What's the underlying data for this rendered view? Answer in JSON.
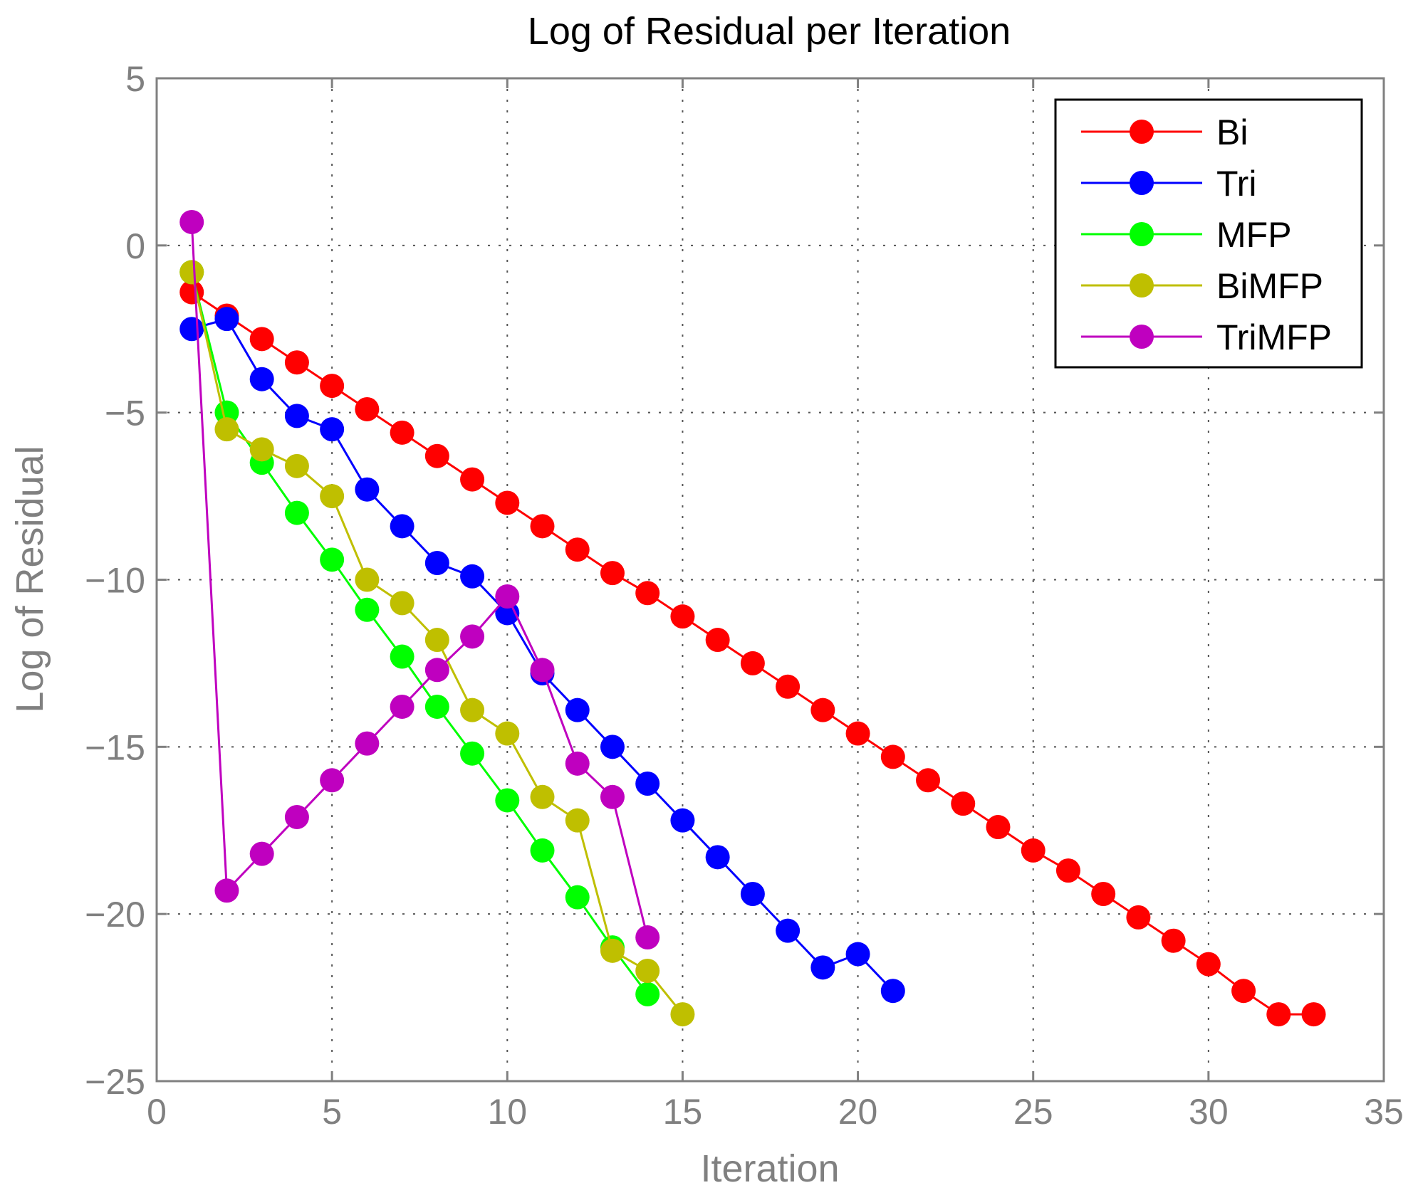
{
  "chart_data": {
    "type": "line",
    "title": "Log of Residual per Iteration",
    "xlabel": "Iteration",
    "ylabel": "Log of Residual",
    "xlim": [
      0,
      35
    ],
    "ylim": [
      -25,
      5
    ],
    "xticks": [
      0,
      5,
      10,
      15,
      20,
      25,
      30,
      35
    ],
    "yticks": [
      5,
      0,
      -5,
      -10,
      -15,
      -20,
      -25
    ],
    "xtick_labels": [
      "0",
      "5",
      "10",
      "15",
      "20",
      "25",
      "30",
      "35"
    ],
    "ytick_labels": [
      "5",
      "0",
      "−5",
      "−10",
      "−15",
      "−20",
      "−25"
    ],
    "grid": true,
    "legend_position": "top-right",
    "series": [
      {
        "name": "Bi",
        "color": "#ff0000",
        "x": [
          1,
          2,
          3,
          4,
          5,
          6,
          7,
          8,
          9,
          10,
          11,
          12,
          13,
          14,
          15,
          16,
          17,
          18,
          19,
          20,
          21,
          22,
          23,
          24,
          25,
          26,
          27,
          28,
          29,
          30,
          31,
          32,
          33
        ],
        "y": [
          -1.4,
          -2.1,
          -2.8,
          -3.5,
          -4.2,
          -4.9,
          -5.6,
          -6.3,
          -7.0,
          -7.7,
          -8.4,
          -9.1,
          -9.8,
          -10.4,
          -11.1,
          -11.8,
          -12.5,
          -13.2,
          -13.9,
          -14.6,
          -15.3,
          -16.0,
          -16.7,
          -17.4,
          -18.1,
          -18.7,
          -19.4,
          -20.1,
          -20.8,
          -21.5,
          -22.3,
          -23.0,
          -23.0
        ]
      },
      {
        "name": "Tri",
        "color": "#0000ff",
        "x": [
          1,
          2,
          3,
          4,
          5,
          6,
          7,
          8,
          9,
          10,
          11,
          12,
          13,
          14,
          15,
          16,
          17,
          18,
          19,
          20,
          21
        ],
        "y": [
          -2.5,
          -2.2,
          -4.0,
          -5.1,
          -5.5,
          -7.3,
          -8.4,
          -9.5,
          -9.9,
          -11.0,
          -12.8,
          -13.9,
          -15.0,
          -16.1,
          -17.2,
          -18.3,
          -19.4,
          -20.5,
          -21.6,
          -21.2,
          -22.3
        ]
      },
      {
        "name": "MFP",
        "color": "#00ff00",
        "x": [
          1,
          2,
          3,
          4,
          5,
          6,
          7,
          8,
          9,
          10,
          11,
          12,
          13,
          14
        ],
        "y": [
          -0.8,
          -5.0,
          -6.5,
          -8.0,
          -9.4,
          -10.9,
          -12.3,
          -13.8,
          -15.2,
          -16.6,
          -18.1,
          -19.5,
          -21.0,
          -22.4
        ]
      },
      {
        "name": "BiMFP",
        "color": "#bfbf00",
        "x": [
          1,
          2,
          3,
          4,
          5,
          6,
          7,
          8,
          9,
          10,
          11,
          12,
          13,
          14,
          15
        ],
        "y": [
          -0.8,
          -5.5,
          -6.1,
          -6.6,
          -7.5,
          -10.0,
          -10.7,
          -11.8,
          -13.9,
          -14.6,
          -16.5,
          -17.2,
          -21.1,
          -21.7,
          -23.0
        ]
      },
      {
        "name": "TriMFP",
        "color": "#bf00bf",
        "x": [
          1,
          2,
          3,
          4,
          5,
          6,
          7,
          8,
          9,
          10,
          11,
          12,
          13,
          14
        ],
        "y": [
          0.7,
          -19.3,
          -18.2,
          -17.1,
          -16.0,
          -14.9,
          -13.8,
          -12.7,
          -11.7,
          -10.5,
          -12.7,
          -15.5,
          -16.5,
          -20.7
        ]
      }
    ]
  }
}
